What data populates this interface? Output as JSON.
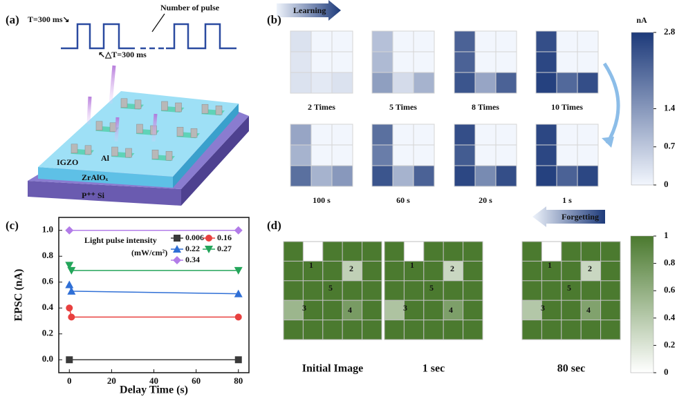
{
  "panel_a": {
    "label": "(a)",
    "pulse_width": "T=300 ms↘",
    "pulse_title": "Number of pulse",
    "pulse_interval": "↖△T=300 ms",
    "materials": [
      "IGZO",
      "Al",
      "ZrAlOₓ",
      "P⁺⁺ Si"
    ]
  },
  "chart_data": [
    {
      "type": "heatmap",
      "panel_label": "(b)",
      "annotations": [
        "Learning",
        "Forgetting"
      ],
      "colormap": [
        "#f2f6fd",
        "#1d3a7a"
      ],
      "colorbar": {
        "title": "nA",
        "lim": [
          0,
          2.8
        ],
        "ticks": [
          0,
          0.7,
          1.4,
          2.8
        ]
      },
      "panels": [
        {
          "label": "2 Times",
          "values": [
            [
              0.3,
              0,
              0
            ],
            [
              0.25,
              0,
              0
            ],
            [
              0.3,
              0.2,
              0.3
            ]
          ]
        },
        {
          "label": "5 Times",
          "values": [
            [
              0.8,
              0,
              0
            ],
            [
              0.9,
              0,
              0
            ],
            [
              1.3,
              0.4,
              1.0
            ]
          ]
        },
        {
          "label": "8 Times",
          "values": [
            [
              2.2,
              0,
              0
            ],
            [
              2.2,
              0,
              0
            ],
            [
              2.4,
              1.2,
              2.2
            ]
          ]
        },
        {
          "label": "10 Times",
          "values": [
            [
              2.5,
              0,
              0
            ],
            [
              2.6,
              0,
              0
            ],
            [
              2.7,
              2.1,
              2.5
            ]
          ]
        },
        {
          "label": "100 s",
          "values": [
            [
              1.2,
              0,
              0
            ],
            [
              1.0,
              0,
              0
            ],
            [
              2.0,
              1.0,
              1.4
            ]
          ]
        },
        {
          "label": "60 s",
          "values": [
            [
              2.0,
              0,
              0
            ],
            [
              1.8,
              0,
              0
            ],
            [
              2.4,
              1.0,
              2.2
            ]
          ]
        },
        {
          "label": "20 s",
          "values": [
            [
              2.5,
              0,
              0
            ],
            [
              2.3,
              0,
              0
            ],
            [
              2.6,
              1.6,
              2.5
            ]
          ]
        },
        {
          "label": "1 s",
          "values": [
            [
              2.6,
              0,
              0
            ],
            [
              2.6,
              0,
              0
            ],
            [
              2.7,
              2.2,
              2.6
            ]
          ]
        }
      ]
    },
    {
      "type": "line",
      "panel_label": "(c)",
      "x_label": "Delay Time (s)",
      "y_label": "EPSC (nA)",
      "legend_title": "Light pulse intensity",
      "legend_unit": "(mW/cm²)",
      "xlim": [
        -5,
        85
      ],
      "ylim": [
        -0.1,
        1.1
      ],
      "xticks": [
        0,
        20,
        40,
        60,
        80
      ],
      "yticks": [
        {
          "value": 0,
          "label": "0.0"
        },
        {
          "value": 0.2,
          "label": "0.2"
        },
        {
          "value": 0.4,
          "label": "0.4"
        },
        {
          "value": 0.6,
          "label": "0.6"
        },
        {
          "value": 0.8,
          "label": "0.8"
        },
        {
          "value": 1,
          "label": "1.0"
        }
      ],
      "series": [
        {
          "name": "0.006",
          "color": "#3a3a3a",
          "marker": "square",
          "x": [
            0,
            80
          ],
          "values": [
            0,
            0
          ]
        },
        {
          "name": "0.16",
          "color": "#e8403f",
          "marker": "circle",
          "x": [
            0,
            1,
            80
          ],
          "values": [
            0.4,
            0.33,
            0.33
          ]
        },
        {
          "name": "0.22",
          "color": "#2f6fd6",
          "marker": "triangle-up",
          "x": [
            0,
            1,
            80
          ],
          "values": [
            0.58,
            0.53,
            0.51
          ]
        },
        {
          "name": "0.27",
          "color": "#23a55a",
          "marker": "triangle-down",
          "x": [
            0,
            1,
            80
          ],
          "values": [
            0.73,
            0.69,
            0.69
          ]
        },
        {
          "name": "0.34",
          "color": "#b27ce8",
          "marker": "diamond",
          "x": [
            0,
            80
          ],
          "values": [
            1,
            1
          ]
        }
      ]
    },
    {
      "type": "heatmap",
      "panel_label": "(d)",
      "colormap": [
        "#ffffff",
        "#4b7a2f"
      ],
      "colorbar": {
        "lim": [
          0,
          1
        ],
        "ticks": [
          0,
          0.2,
          0.4,
          0.6,
          0.8,
          1
        ]
      },
      "cell_labels": [
        "1",
        "2",
        "5",
        "3",
        "4"
      ],
      "panels": [
        {
          "label": "Initial Image",
          "values": [
            [
              1,
              0,
              1,
              1,
              1
            ],
            [
              1,
              1,
              1,
              0.35,
              1
            ],
            [
              1,
              1,
              1,
              1,
              1
            ],
            [
              0.55,
              1,
              1,
              0.75,
              1
            ],
            [
              1,
              1,
              1,
              1,
              1
            ]
          ]
        },
        {
          "label": "1 sec",
          "values": [
            [
              1,
              0,
              1,
              1,
              1
            ],
            [
              1,
              1,
              1,
              0.3,
              1
            ],
            [
              1,
              1,
              1,
              1,
              1
            ],
            [
              0.45,
              1,
              1,
              0.72,
              1
            ],
            [
              1,
              1,
              1,
              1,
              1
            ]
          ]
        },
        {
          "label": "80 sec",
          "values": [
            [
              1,
              0,
              1,
              1,
              1
            ],
            [
              1,
              1,
              1,
              0.3,
              1
            ],
            [
              1,
              1,
              1,
              1,
              1
            ],
            [
              0.42,
              1,
              1,
              0.7,
              1
            ],
            [
              1,
              1,
              1,
              1,
              1
            ]
          ]
        }
      ]
    }
  ]
}
